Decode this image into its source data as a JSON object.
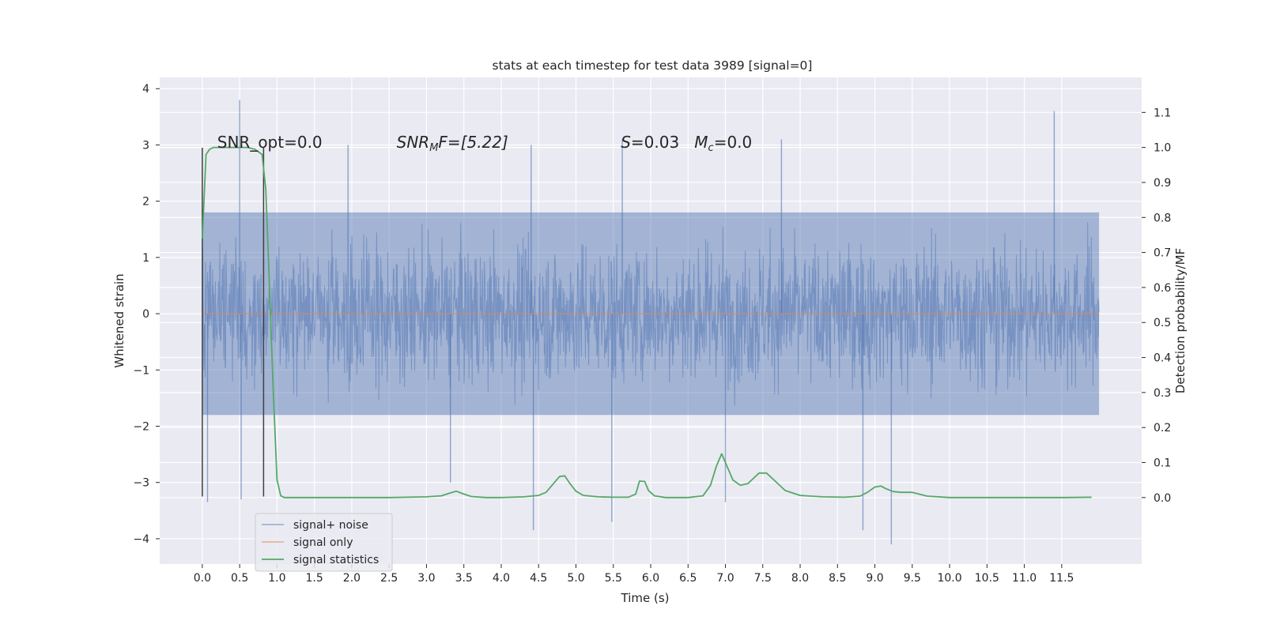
{
  "chart_data": {
    "type": "line",
    "title": "stats at each timestep for test data 3989 [signal=0]",
    "xlabel": "Time (s)",
    "ylabel": "Whitened strain",
    "y2label": "Detection probability/MF",
    "xlim": [
      -0.57,
      12.57
    ],
    "ylim": [
      -4.45,
      4.2
    ],
    "y2lim": [
      -0.19,
      1.2
    ],
    "x_ticks": [
      0.0,
      0.5,
      1.0,
      1.5,
      2.0,
      2.5,
      3.0,
      3.5,
      4.0,
      4.5,
      5.0,
      5.5,
      6.0,
      6.5,
      7.0,
      7.5,
      8.0,
      8.5,
      9.0,
      9.5,
      10.0,
      10.5,
      11.0,
      11.5
    ],
    "x_tick_labels": [
      "0.0",
      "0.5",
      "1.0",
      "1.5",
      "2.0",
      "2.5",
      "3.0",
      "3.5",
      "4.0",
      "4.5",
      "5.0",
      "5.5",
      "6.0",
      "6.5",
      "7.0",
      "7.5",
      "8.0",
      "8.5",
      "9.0",
      "9.5",
      "10.0",
      "10.5",
      "11.0",
      "11.5"
    ],
    "y_ticks": [
      -4,
      -3,
      -2,
      -1,
      0,
      1,
      2,
      3,
      4
    ],
    "y_tick_labels": [
      "−4",
      "−3",
      "−2",
      "−1",
      "0",
      "1",
      "2",
      "3",
      "4"
    ],
    "y2_ticks": [
      0.0,
      0.1,
      0.2,
      0.3,
      0.4,
      0.5,
      0.6,
      0.7,
      0.8,
      0.9,
      1.0,
      1.1
    ],
    "y2_tick_labels": [
      "0.0",
      "0.1",
      "0.2",
      "0.3",
      "0.4",
      "0.5",
      "0.6",
      "0.7",
      "0.8",
      "0.9",
      "1.0",
      "1.1"
    ],
    "grid": true,
    "legend_position": "lower-left",
    "series": [
      {
        "name": "signal+ noise",
        "color": "#4c72b0",
        "axis": "left",
        "x_range": [
          0.0,
          12.0
        ],
        "typical_envelope": [
          -1.8,
          1.8
        ],
        "spikes": [
          [
            0.5,
            3.8
          ],
          [
            0.52,
            -3.3
          ],
          [
            11.4,
            3.6
          ],
          [
            9.22,
            -4.1
          ],
          [
            4.43,
            -3.85
          ],
          [
            5.48,
            -3.7
          ],
          [
            8.84,
            -3.85
          ],
          [
            1.95,
            3.0
          ],
          [
            4.4,
            3.0
          ],
          [
            5.62,
            3.1
          ],
          [
            7.75,
            3.1
          ],
          [
            3.32,
            -3.0
          ],
          [
            7.0,
            -3.35
          ],
          [
            0.07,
            -3.35
          ]
        ]
      },
      {
        "name": "signal only",
        "color": "#dd8452",
        "axis": "left",
        "x": [
          0.0,
          12.0
        ],
        "y": [
          0.0,
          0.0
        ]
      },
      {
        "name": "signal statistics",
        "color": "#55a868",
        "axis": "right",
        "x": [
          0.0,
          0.05,
          0.1,
          0.15,
          0.2,
          0.3,
          0.4,
          0.5,
          0.6,
          0.7,
          0.8,
          0.85,
          0.9,
          0.95,
          1.0,
          1.05,
          1.1,
          1.2,
          1.5,
          2.0,
          2.5,
          3.0,
          3.2,
          3.3,
          3.4,
          3.5,
          3.6,
          3.8,
          4.0,
          4.3,
          4.5,
          4.6,
          4.7,
          4.78,
          4.85,
          4.92,
          5.0,
          5.1,
          5.3,
          5.5,
          5.7,
          5.8,
          5.85,
          5.92,
          5.97,
          6.05,
          6.2,
          6.5,
          6.7,
          6.8,
          6.88,
          6.95,
          7.0,
          7.1,
          7.2,
          7.3,
          7.45,
          7.55,
          7.65,
          7.8,
          8.0,
          8.3,
          8.6,
          8.8,
          8.9,
          9.0,
          9.08,
          9.15,
          9.25,
          9.35,
          9.5,
          9.7,
          10.0,
          10.5,
          11.0,
          11.5,
          11.9
        ],
        "y": [
          0.74,
          0.98,
          0.995,
          1.0,
          1.0,
          1.0,
          1.0,
          1.0,
          1.0,
          0.995,
          0.98,
          0.88,
          0.6,
          0.3,
          0.05,
          0.005,
          0.0,
          0.0,
          0.0,
          0.0,
          0.0,
          0.002,
          0.005,
          0.012,
          0.018,
          0.01,
          0.003,
          0.0,
          0.0,
          0.002,
          0.006,
          0.015,
          0.04,
          0.06,
          0.062,
          0.04,
          0.018,
          0.006,
          0.002,
          0.001,
          0.001,
          0.01,
          0.047,
          0.046,
          0.02,
          0.005,
          0.0,
          0.0,
          0.005,
          0.035,
          0.09,
          0.125,
          0.1,
          0.05,
          0.035,
          0.04,
          0.07,
          0.07,
          0.05,
          0.02,
          0.006,
          0.002,
          0.001,
          0.004,
          0.015,
          0.03,
          0.033,
          0.025,
          0.017,
          0.015,
          0.015,
          0.004,
          0.0,
          0.0,
          0.0,
          0.0,
          0.001
        ]
      }
    ],
    "vertical_lines": [
      {
        "x": 0.0,
        "y_range": [
          -3.25,
          2.95
        ],
        "color": "#404040"
      },
      {
        "x": 0.82,
        "y_range": [
          -3.25,
          2.95
        ],
        "color": "#404040"
      }
    ],
    "annotations": [
      {
        "text": "SNR_opt=0.0",
        "x": 0.2,
        "y": 2.95
      },
      {
        "text_parts": [
          "SNR",
          "M",
          "F=[5.22]"
        ],
        "x": 2.6,
        "y": 2.95
      },
      {
        "text_parts": [
          "S",
          "=0.03   ",
          "M",
          "c",
          "=0.0"
        ],
        "x": 5.6,
        "y": 2.95
      }
    ]
  }
}
